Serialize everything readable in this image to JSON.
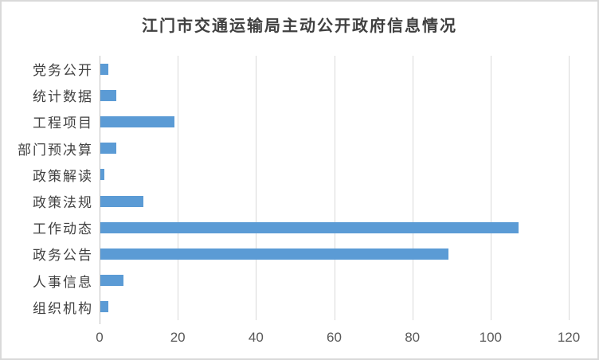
{
  "title": "江门市交通运输局主动公开政府信息情况",
  "colors": {
    "bar": "#5b9bd5",
    "gridline": "#d9d9d9",
    "axis_line": "#bfbfbf",
    "title_text": "#404040",
    "category_text": "#404040",
    "tick_text": "#595959",
    "frame_border": "#d9d9d9",
    "background": "#ffffff"
  },
  "chart_data": {
    "type": "bar",
    "orientation": "horizontal",
    "title": "江门市交通运输局主动公开政府信息情况",
    "categories": [
      "党务公开",
      "统计数据",
      "工程项目",
      "部门预决算",
      "政策解读",
      "政策法规",
      "工作动态",
      "政务公告",
      "人事信息",
      "组织机构"
    ],
    "values": [
      2,
      4,
      19,
      4,
      1,
      11,
      107,
      89,
      6,
      2
    ],
    "xlabel": "",
    "ylabel": "",
    "xlim": [
      0,
      120
    ],
    "x_ticks": [
      0,
      20,
      40,
      60,
      80,
      100,
      120
    ],
    "grid": true,
    "legend": false,
    "note": "categories listed top to bottom as displayed"
  }
}
